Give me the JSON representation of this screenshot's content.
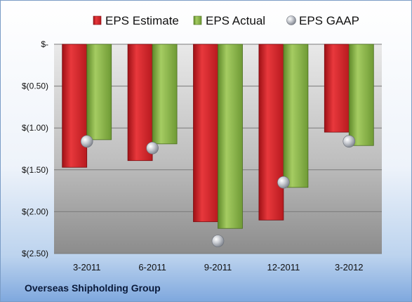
{
  "company": "Overseas Shipholding Group",
  "colors": {
    "estimate": "#d8262b",
    "actual": "#8fb84a",
    "gaap": "#c9ccd2"
  },
  "chart_data": {
    "type": "bar",
    "title": "",
    "xlabel": "",
    "ylabel": "",
    "categories": [
      "3-2011",
      "6-2011",
      "9-2011",
      "12-2011",
      "3-2012"
    ],
    "series": [
      {
        "name": "EPS Estimate",
        "values": [
          -1.47,
          -1.39,
          -2.12,
          -2.1,
          -1.05
        ]
      },
      {
        "name": "EPS Actual",
        "values": [
          -1.14,
          -1.19,
          -2.2,
          -1.71,
          -1.21
        ]
      },
      {
        "name": "EPS GAAP",
        "marker": "circle",
        "values": [
          -1.16,
          -1.24,
          -2.35,
          -1.65,
          -1.16
        ]
      }
    ],
    "ylim": [
      -2.5,
      0
    ],
    "yticks": [
      0,
      -0.5,
      -1.0,
      -1.5,
      -2.0,
      -2.5
    ],
    "ytick_labels": [
      "$-",
      "$(0.50)",
      "$(1.00)",
      "$(1.50)",
      "$(2.00)",
      "$(2.50)"
    ],
    "grid": true,
    "legend": "top"
  }
}
